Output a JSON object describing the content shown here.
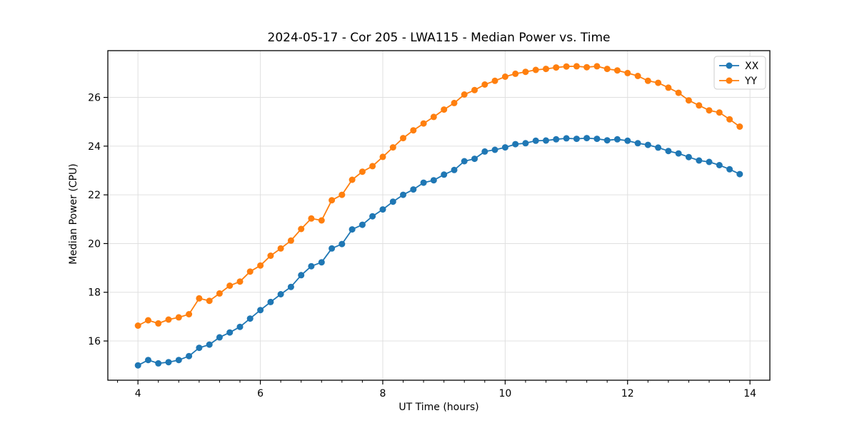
{
  "chart_data": {
    "type": "line",
    "title": "2024-05-17 - Cor 205 - LWA115 - Median Power vs. Time",
    "xlabel": "UT Time (hours)",
    "ylabel": "Median Power (CPU)",
    "xlim": [
      3.508,
      14.325
    ],
    "ylim": [
      14.39,
      27.92
    ],
    "x_ticks": [
      4,
      6,
      8,
      10,
      12,
      14
    ],
    "y_ticks": [
      16,
      18,
      20,
      22,
      24,
      26
    ],
    "x_minor_tick_step": 0.33333,
    "grid": true,
    "legend_position": "upper right",
    "background_color": "#ffffff",
    "grid_color": "#e0e0e0",
    "x": [
      4.0,
      4.167,
      4.333,
      4.5,
      4.667,
      4.833,
      5.0,
      5.167,
      5.333,
      5.5,
      5.667,
      5.833,
      6.0,
      6.167,
      6.333,
      6.5,
      6.667,
      6.833,
      7.0,
      7.167,
      7.333,
      7.5,
      7.667,
      7.833,
      8.0,
      8.167,
      8.333,
      8.5,
      8.667,
      8.833,
      9.0,
      9.167,
      9.333,
      9.5,
      9.667,
      9.833,
      10.0,
      10.167,
      10.333,
      10.5,
      10.667,
      10.833,
      11.0,
      11.167,
      11.333,
      11.5,
      11.667,
      11.833,
      12.0,
      12.167,
      12.333,
      12.5,
      12.667,
      12.833,
      13.0,
      13.167,
      13.333,
      13.5,
      13.667,
      13.833
    ],
    "series": [
      {
        "name": "XX",
        "color": "#1f77b4",
        "values": [
          15.0,
          15.22,
          15.08,
          15.13,
          15.22,
          15.38,
          15.72,
          15.85,
          16.15,
          16.35,
          16.58,
          16.92,
          17.27,
          17.6,
          17.92,
          18.22,
          18.7,
          19.07,
          19.23,
          19.8,
          19.98,
          20.58,
          20.77,
          21.12,
          21.4,
          21.72,
          22.0,
          22.22,
          22.5,
          22.6,
          22.83,
          23.02,
          23.38,
          23.48,
          23.78,
          23.85,
          23.95,
          24.08,
          24.12,
          24.22,
          24.23,
          24.28,
          24.32,
          24.3,
          24.33,
          24.3,
          24.24,
          24.28,
          24.22,
          24.12,
          24.05,
          23.94,
          23.8,
          23.7,
          23.55,
          23.41,
          23.35,
          23.22,
          23.05,
          22.85
        ]
      },
      {
        "name": "YY",
        "color": "#ff7f0e",
        "values": [
          16.63,
          16.85,
          16.72,
          16.88,
          16.97,
          17.1,
          17.75,
          17.65,
          17.95,
          18.27,
          18.44,
          18.85,
          19.1,
          19.5,
          19.8,
          20.12,
          20.6,
          21.03,
          20.95,
          21.78,
          22.0,
          22.62,
          22.95,
          23.18,
          23.56,
          23.95,
          24.33,
          24.65,
          24.93,
          25.2,
          25.5,
          25.77,
          26.12,
          26.3,
          26.53,
          26.68,
          26.85,
          26.97,
          27.05,
          27.13,
          27.17,
          27.23,
          27.27,
          27.28,
          27.24,
          27.28,
          27.17,
          27.11,
          27.0,
          26.88,
          26.68,
          26.6,
          26.4,
          26.19,
          25.88,
          25.67,
          25.47,
          25.38,
          25.1,
          24.8
        ]
      }
    ]
  }
}
